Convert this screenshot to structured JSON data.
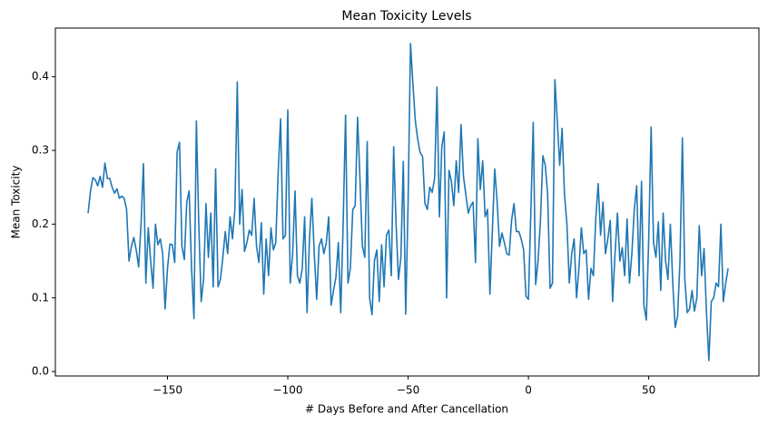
{
  "chart_data": {
    "type": "line",
    "title": "Mean Toxicity Levels",
    "x_label": "# Days Before and After Cancellation",
    "y_label": "Mean Toxicity",
    "x": [
      -183,
      -182,
      -181,
      -180,
      -179,
      -178,
      -177,
      -176,
      -175,
      -174,
      -173,
      -172,
      -171,
      -170,
      -169,
      -168,
      -167,
      -166,
      -165,
      -164,
      -163,
      -162,
      -161,
      -160,
      -159,
      -158,
      -157,
      -156,
      -155,
      -154,
      -153,
      -152,
      -151,
      -150,
      -149,
      -148,
      -147,
      -146,
      -145,
      -144,
      -143,
      -142,
      -141,
      -140,
      -139,
      -138,
      -137,
      -136,
      -135,
      -134,
      -133,
      -132,
      -131,
      -130,
      -129,
      -128,
      -127,
      -126,
      -125,
      -124,
      -123,
      -122,
      -121,
      -120,
      -119,
      -118,
      -117,
      -116,
      -115,
      -114,
      -113,
      -112,
      -111,
      -110,
      -109,
      -108,
      -107,
      -106,
      -105,
      -104,
      -103,
      -102,
      -101,
      -100,
      -99,
      -98,
      -97,
      -96,
      -95,
      -94,
      -93,
      -92,
      -91,
      -90,
      -89,
      -88,
      -87,
      -86,
      -85,
      -84,
      -83,
      -82,
      -81,
      -80,
      -79,
      -78,
      -77,
      -76,
      -75,
      -74,
      -73,
      -72,
      -71,
      -70,
      -69,
      -68,
      -67,
      -66,
      -65,
      -64,
      -63,
      -62,
      -61,
      -60,
      -59,
      -58,
      -57,
      -56,
      -55,
      -54,
      -53,
      -52,
      -51,
      -50,
      -49,
      -48,
      -47,
      -46,
      -45,
      -44,
      -43,
      -42,
      -41,
      -40,
      -39,
      -38,
      -37,
      -36,
      -35,
      -34,
      -33,
      -32,
      -31,
      -30,
      -29,
      -28,
      -27,
      -26,
      -25,
      -24,
      -23,
      -22,
      -21,
      -20,
      -19,
      -18,
      -17,
      -16,
      -15,
      -14,
      -13,
      -12,
      -11,
      -10,
      -9,
      -8,
      -7,
      -6,
      -5,
      -4,
      -3,
      -2,
      -1,
      0,
      1,
      2,
      3,
      4,
      5,
      6,
      7,
      8,
      9,
      10,
      11,
      12,
      13,
      14,
      15,
      16,
      17,
      18,
      19,
      20,
      21,
      22,
      23,
      24,
      25,
      26,
      27,
      28,
      29,
      30,
      31,
      32,
      33,
      34,
      35,
      36,
      37,
      38,
      39,
      40,
      41,
      42,
      43,
      44,
      45,
      46,
      47,
      48,
      49,
      50,
      51,
      52,
      53,
      54,
      55,
      56,
      57,
      58,
      59,
      60,
      61,
      62,
      63,
      64,
      65,
      66,
      67,
      68,
      69,
      70,
      71,
      72,
      73,
      74,
      75,
      76,
      77,
      78,
      79,
      80,
      81,
      82,
      83
    ],
    "series": [
      {
        "name": "Mean Toxicity",
        "color": "#1f77b4",
        "values": [
          0.215,
          0.245,
          0.263,
          0.26,
          0.252,
          0.265,
          0.25,
          0.283,
          0.262,
          0.262,
          0.25,
          0.242,
          0.248,
          0.235,
          0.238,
          0.235,
          0.22,
          0.15,
          0.17,
          0.182,
          0.165,
          0.142,
          0.2,
          0.282,
          0.12,
          0.195,
          0.15,
          0.113,
          0.2,
          0.172,
          0.18,
          0.16,
          0.085,
          0.14,
          0.173,
          0.172,
          0.148,
          0.298,
          0.311,
          0.17,
          0.152,
          0.23,
          0.245,
          0.14,
          0.072,
          0.34,
          0.2,
          0.095,
          0.125,
          0.228,
          0.155,
          0.215,
          0.115,
          0.275,
          0.115,
          0.125,
          0.155,
          0.19,
          0.16,
          0.21,
          0.18,
          0.22,
          0.393,
          0.2,
          0.247,
          0.163,
          0.175,
          0.192,
          0.185,
          0.235,
          0.17,
          0.148,
          0.202,
          0.105,
          0.18,
          0.13,
          0.195,
          0.165,
          0.175,
          0.27,
          0.343,
          0.18,
          0.185,
          0.355,
          0.12,
          0.16,
          0.245,
          0.13,
          0.12,
          0.14,
          0.21,
          0.08,
          0.18,
          0.235,
          0.16,
          0.098,
          0.17,
          0.18,
          0.16,
          0.175,
          0.21,
          0.09,
          0.11,
          0.128,
          0.175,
          0.08,
          0.2,
          0.348,
          0.12,
          0.14,
          0.22,
          0.225,
          0.345,
          0.26,
          0.17,
          0.155,
          0.312,
          0.1,
          0.077,
          0.15,
          0.165,
          0.095,
          0.172,
          0.115,
          0.185,
          0.192,
          0.13,
          0.305,
          0.2,
          0.125,
          0.155,
          0.285,
          0.078,
          0.23,
          0.445,
          0.39,
          0.34,
          0.315,
          0.297,
          0.292,
          0.228,
          0.22,
          0.25,
          0.243,
          0.262,
          0.386,
          0.21,
          0.305,
          0.325,
          0.1,
          0.273,
          0.258,
          0.225,
          0.286,
          0.243,
          0.335,
          0.265,
          0.24,
          0.215,
          0.225,
          0.23,
          0.148,
          0.316,
          0.247,
          0.286,
          0.21,
          0.22,
          0.105,
          0.19,
          0.275,
          0.23,
          0.17,
          0.188,
          0.175,
          0.16,
          0.158,
          0.205,
          0.228,
          0.19,
          0.19,
          0.18,
          0.165,
          0.102,
          0.098,
          0.215,
          0.338,
          0.118,
          0.15,
          0.205,
          0.293,
          0.28,
          0.24,
          0.113,
          0.12,
          0.396,
          0.34,
          0.28,
          0.33,
          0.24,
          0.2,
          0.12,
          0.16,
          0.18,
          0.1,
          0.14,
          0.195,
          0.16,
          0.165,
          0.098,
          0.14,
          0.13,
          0.208,
          0.255,
          0.185,
          0.23,
          0.16,
          0.18,
          0.205,
          0.095,
          0.16,
          0.215,
          0.15,
          0.168,
          0.13,
          0.207,
          0.12,
          0.16,
          0.22,
          0.252,
          0.13,
          0.258,
          0.09,
          0.07,
          0.18,
          0.332,
          0.175,
          0.155,
          0.203,
          0.11,
          0.215,
          0.15,
          0.125,
          0.2,
          0.12,
          0.06,
          0.075,
          0.15,
          0.317,
          0.125,
          0.08,
          0.085,
          0.11,
          0.082,
          0.1,
          0.198,
          0.13,
          0.167,
          0.08,
          0.015,
          0.095,
          0.1,
          0.12,
          0.115,
          0.2,
          0.095,
          0.12,
          0.14
        ]
      }
    ],
    "xlim": [
      -196.6,
      95.8
    ],
    "ylim": [
      -0.006,
      0.466
    ],
    "xticks": [
      {
        "value": -150,
        "label": "−150"
      },
      {
        "value": -100,
        "label": "−100"
      },
      {
        "value": -50,
        "label": "−50"
      },
      0,
      50
    ],
    "yticks": [
      {
        "value": 0,
        "label": "0.0"
      },
      0.1,
      0.2,
      0.3,
      0.4
    ],
    "grid": false
  }
}
